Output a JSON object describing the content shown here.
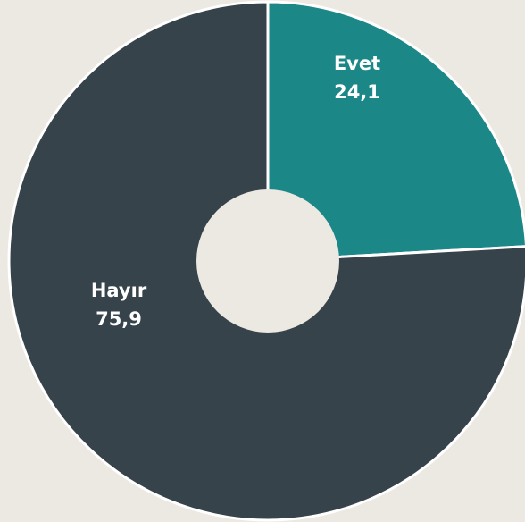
{
  "chart_data": {
    "type": "pie",
    "donut": true,
    "categories": [
      "Evet",
      "Hayır"
    ],
    "values": [
      24.1,
      75.9
    ],
    "value_labels": [
      "24,1",
      "75,9"
    ],
    "colors": [
      "#1b8787",
      "#37434a"
    ]
  }
}
